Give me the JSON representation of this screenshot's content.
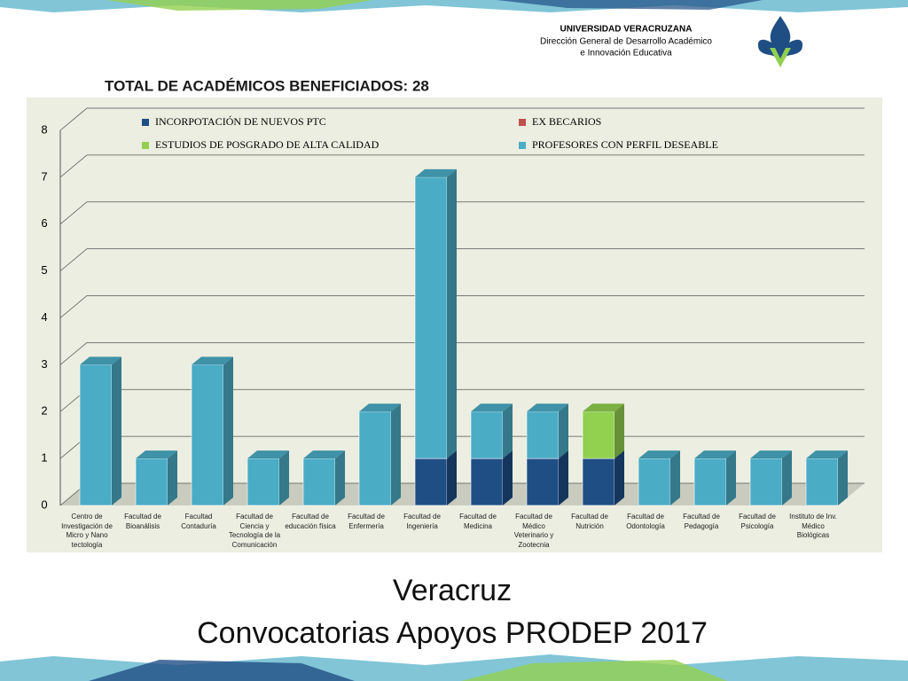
{
  "header": {
    "institution": "UNIVERSIDAD VERACRUZANA",
    "department_line1": "Dirección General de Desarrollo Académico",
    "department_line2": "e Innovación Educativa"
  },
  "chart_data": {
    "type": "bar3d_stacked",
    "title": "TOTAL DE ACADÉMICOS BENEFICIADOS: 28",
    "categories": [
      "Centro de Investigación de Micro y Nano tectología",
      "Facultad de Bioanálisis",
      "Facultad Contaduría",
      "Facultad de Ciencia y Tecnología de la Comunicación",
      "Facultad de educación física",
      "Facultad de Enfermería",
      "Facultad de Ingeniería",
      "Facultad de Medicina",
      "Facultad de Médico Veterinario y Zootecnia",
      "Facultad de Nutrición",
      "Facultad de Odontología",
      "Facultad de Pedagogía",
      "Facultad de Psicología",
      "Instituto de Inv. Médico Biológicas"
    ],
    "series": [
      {
        "name": "INCORPOTACIÓN DE NUEVOS PTC",
        "color": "#1f4e84",
        "values": [
          0,
          0,
          0,
          0,
          0,
          0,
          1,
          1,
          1,
          1,
          0,
          0,
          0,
          0
        ]
      },
      {
        "name": "EX BECARIOS",
        "color": "#c0504d",
        "values": [
          0,
          0,
          0,
          0,
          0,
          0,
          0,
          0,
          0,
          0,
          0,
          0,
          0,
          0
        ]
      },
      {
        "name": "ESTUDIOS DE POSGRADO DE ALTA CALIDAD",
        "color": "#92d050",
        "values": [
          0,
          0,
          0,
          0,
          0,
          0,
          0,
          0,
          0,
          1,
          0,
          0,
          0,
          0
        ]
      },
      {
        "name": "PROFESORES CON PERFIL DESEABLE",
        "color": "#4bacc6",
        "values": [
          3,
          1,
          3,
          1,
          1,
          2,
          6,
          1,
          1,
          0,
          1,
          1,
          1,
          1
        ]
      }
    ],
    "ylim": [
      0,
      8
    ],
    "yticks": [
      0,
      1,
      2,
      3,
      4,
      5,
      6,
      7,
      8
    ],
    "grid": true,
    "legend": "top"
  },
  "footer": {
    "line1": "Veracruz",
    "line2": "Convocatorias Apoyos PRODEP 2017"
  }
}
